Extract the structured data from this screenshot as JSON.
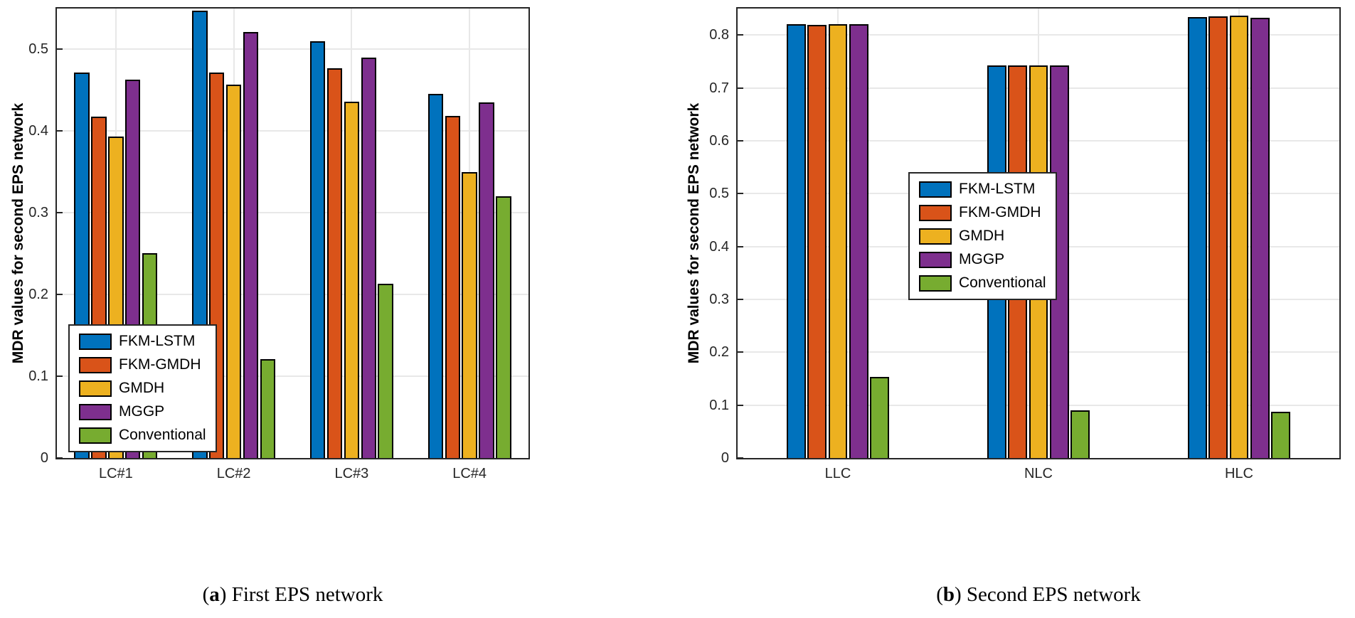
{
  "figure": {
    "background": "#ffffff"
  },
  "chart_data": [
    {
      "type": "bar",
      "title": "",
      "caption": {
        "open": "(",
        "letter": "a",
        "close": ")",
        "label": "First EPS network"
      },
      "categories": [
        "LC#1",
        "LC#2",
        "LC#3",
        "LC#4"
      ],
      "series": [
        {
          "name": "FKM-LSTM",
          "color": "#0072BD",
          "values": [
            0.472,
            0.547,
            0.51,
            0.446
          ]
        },
        {
          "name": "FKM-GMDH",
          "color": "#D95319",
          "values": [
            0.418,
            0.472,
            0.477,
            0.419
          ]
        },
        {
          "name": "GMDH",
          "color": "#EDB120",
          "values": [
            0.393,
            0.457,
            0.436,
            0.35
          ]
        },
        {
          "name": "MGGP",
          "color": "#7E2F8E",
          "values": [
            0.463,
            0.521,
            0.49,
            0.435
          ]
        },
        {
          "name": "Conventional",
          "color": "#77AC30",
          "values": [
            0.251,
            0.121,
            0.213,
            0.32
          ]
        }
      ],
      "xlabel": "",
      "ylabel": "MDR values for second EPS network",
      "ylim": [
        0,
        0.55
      ],
      "yticks": [
        0,
        0.1,
        0.2,
        0.3,
        0.4,
        0.5
      ],
      "ytick_labels": [
        "0",
        "0.1",
        "0.2",
        "0.3",
        "0.4",
        "0.5"
      ],
      "grid": true,
      "legend_position": "inside-bottom-left"
    },
    {
      "type": "bar",
      "title": "",
      "caption": {
        "open": "(",
        "letter": "b",
        "close": ")",
        "label": "Second EPS network"
      },
      "categories": [
        "LLC",
        "NLC",
        "HLC"
      ],
      "series": [
        {
          "name": "FKM-LSTM",
          "color": "#0072BD",
          "values": [
            0.82,
            0.743,
            0.834
          ]
        },
        {
          "name": "FKM-GMDH",
          "color": "#D95319",
          "values": [
            0.819,
            0.743,
            0.835
          ]
        },
        {
          "name": "GMDH",
          "color": "#EDB120",
          "values": [
            0.821,
            0.742,
            0.837
          ]
        },
        {
          "name": "MGGP",
          "color": "#7E2F8E",
          "values": [
            0.82,
            0.743,
            0.832
          ]
        },
        {
          "name": "Conventional",
          "color": "#77AC30",
          "values": [
            0.153,
            0.09,
            0.088
          ]
        }
      ],
      "xlabel": "",
      "ylabel": "MDR values for second EPS network",
      "ylim": [
        0,
        0.85
      ],
      "yticks": [
        0,
        0.1,
        0.2,
        0.3,
        0.4,
        0.5,
        0.6,
        0.7,
        0.8
      ],
      "ytick_labels": [
        "0",
        "0.1",
        "0.2",
        "0.3",
        "0.4",
        "0.5",
        "0.6",
        "0.7",
        "0.8"
      ],
      "grid": true,
      "legend_position": "inside-middle-right"
    }
  ]
}
